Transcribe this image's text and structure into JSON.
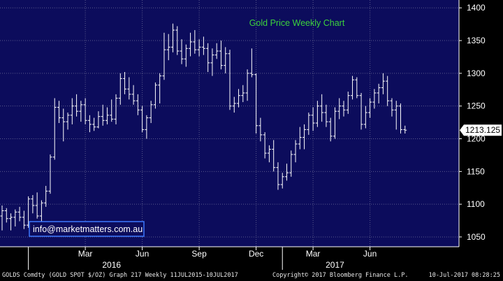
{
  "chart_data": {
    "type": "ohlc",
    "title": "Gold Price Weekly Chart",
    "watermark": "info@marketmatters.com.au",
    "last_price_label": "1213.125",
    "last_price": 1213.125,
    "ylim": [
      1035,
      1412
    ],
    "yticks": [
      1050,
      1100,
      1150,
      1200,
      1250,
      1300,
      1350,
      1400
    ],
    "month_ticks": [
      {
        "label": "Mar",
        "week": 19
      },
      {
        "label": "Jun",
        "week": 32
      },
      {
        "label": "Sep",
        "week": 45
      },
      {
        "label": "Dec",
        "week": 58
      },
      {
        "label": "Mar",
        "week": 71
      },
      {
        "label": "Jun",
        "week": 84
      }
    ],
    "year_labels": [
      {
        "label": "2016",
        "week": 25
      },
      {
        "label": "2017",
        "week": 76
      }
    ],
    "year_separators": [
      6,
      64
    ],
    "x_count": 104,
    "colors": {
      "background": "#0c0c5c",
      "bars": "#ffffff",
      "title": "#3cd23c",
      "grid": "#5a5a8c",
      "axis_text": "#ffffff",
      "watermark_border": "#3c78ff",
      "price_tag_bg": "#ffffff",
      "price_tag_text": "#000000"
    },
    "ohlc": [
      [
        1082,
        1098,
        1060,
        1090
      ],
      [
        1090,
        1094,
        1072,
        1078
      ],
      [
        1078,
        1086,
        1060,
        1080
      ],
      [
        1080,
        1092,
        1066,
        1088
      ],
      [
        1088,
        1096,
        1074,
        1080
      ],
      [
        1080,
        1090,
        1062,
        1068
      ],
      [
        1068,
        1112,
        1064,
        1108
      ],
      [
        1108,
        1114,
        1086,
        1098
      ],
      [
        1098,
        1118,
        1078,
        1082
      ],
      [
        1082,
        1106,
        1072,
        1102
      ],
      [
        1102,
        1128,
        1096,
        1120
      ],
      [
        1120,
        1176,
        1116,
        1172
      ],
      [
        1172,
        1262,
        1168,
        1248
      ],
      [
        1248,
        1258,
        1224,
        1232
      ],
      [
        1232,
        1246,
        1196,
        1226
      ],
      [
        1226,
        1240,
        1214,
        1236
      ],
      [
        1236,
        1262,
        1222,
        1250
      ],
      [
        1250,
        1268,
        1234,
        1242
      ],
      [
        1242,
        1258,
        1226,
        1252
      ],
      [
        1252,
        1262,
        1222,
        1228
      ],
      [
        1228,
        1236,
        1210,
        1222
      ],
      [
        1222,
        1232,
        1212,
        1218
      ],
      [
        1218,
        1242,
        1216,
        1234
      ],
      [
        1234,
        1252,
        1220,
        1228
      ],
      [
        1228,
        1248,
        1222,
        1236
      ],
      [
        1236,
        1260,
        1226,
        1230
      ],
      [
        1230,
        1268,
        1222,
        1262
      ],
      [
        1262,
        1300,
        1252,
        1292
      ],
      [
        1292,
        1302,
        1268,
        1276
      ],
      [
        1276,
        1294,
        1260,
        1268
      ],
      [
        1268,
        1282,
        1252,
        1258
      ],
      [
        1258,
        1268,
        1236,
        1244
      ],
      [
        1244,
        1250,
        1210,
        1214
      ],
      [
        1214,
        1236,
        1200,
        1232
      ],
      [
        1232,
        1258,
        1224,
        1252
      ],
      [
        1252,
        1286,
        1246,
        1282
      ],
      [
        1282,
        1300,
        1254,
        1296
      ],
      [
        1296,
        1362,
        1290,
        1336
      ],
      [
        1336,
        1360,
        1320,
        1340
      ],
      [
        1340,
        1376,
        1332,
        1366
      ],
      [
        1366,
        1372,
        1328,
        1334
      ],
      [
        1334,
        1352,
        1314,
        1322
      ],
      [
        1322,
        1344,
        1310,
        1338
      ],
      [
        1338,
        1362,
        1326,
        1348
      ],
      [
        1348,
        1366,
        1330,
        1336
      ],
      [
        1336,
        1352,
        1326,
        1340
      ],
      [
        1340,
        1356,
        1328,
        1338
      ],
      [
        1338,
        1346,
        1302,
        1316
      ],
      [
        1316,
        1338,
        1296,
        1328
      ],
      [
        1328,
        1346,
        1322,
        1334
      ],
      [
        1334,
        1350,
        1306,
        1312
      ],
      [
        1312,
        1340,
        1300,
        1330
      ],
      [
        1330,
        1336,
        1244,
        1250
      ],
      [
        1250,
        1264,
        1240,
        1254
      ],
      [
        1254,
        1276,
        1248,
        1266
      ],
      [
        1266,
        1282,
        1256,
        1270
      ],
      [
        1270,
        1306,
        1258,
        1300
      ],
      [
        1300,
        1338,
        1294,
        1298
      ],
      [
        1298,
        1300,
        1208,
        1220
      ],
      [
        1220,
        1232,
        1196,
        1206
      ],
      [
        1206,
        1210,
        1170,
        1178
      ],
      [
        1178,
        1190,
        1164,
        1184
      ],
      [
        1184,
        1198,
        1150,
        1156
      ],
      [
        1156,
        1164,
        1122,
        1130
      ],
      [
        1130,
        1148,
        1124,
        1142
      ],
      [
        1142,
        1162,
        1136,
        1148
      ],
      [
        1148,
        1182,
        1142,
        1176
      ],
      [
        1176,
        1198,
        1164,
        1192
      ],
      [
        1192,
        1218,
        1184,
        1202
      ],
      [
        1202,
        1222,
        1184,
        1214
      ],
      [
        1214,
        1240,
        1206,
        1236
      ],
      [
        1236,
        1248,
        1212,
        1224
      ],
      [
        1224,
        1258,
        1218,
        1250
      ],
      [
        1250,
        1268,
        1226,
        1240
      ],
      [
        1240,
        1252,
        1218,
        1226
      ],
      [
        1226,
        1232,
        1196,
        1204
      ],
      [
        1204,
        1248,
        1200,
        1242
      ],
      [
        1242,
        1262,
        1230,
        1250
      ],
      [
        1250,
        1258,
        1234,
        1244
      ],
      [
        1244,
        1272,
        1238,
        1266
      ],
      [
        1266,
        1296,
        1260,
        1290
      ],
      [
        1290,
        1294,
        1262,
        1266
      ],
      [
        1266,
        1270,
        1214,
        1222
      ],
      [
        1222,
        1250,
        1216,
        1240
      ],
      [
        1240,
        1262,
        1232,
        1256
      ],
      [
        1256,
        1276,
        1246,
        1270
      ],
      [
        1270,
        1284,
        1254,
        1278
      ],
      [
        1278,
        1300,
        1268,
        1288
      ],
      [
        1288,
        1296,
        1250,
        1258
      ],
      [
        1258,
        1262,
        1234,
        1244
      ],
      [
        1244,
        1258,
        1214,
        1250
      ],
      [
        1250,
        1254,
        1208,
        1214
      ],
      [
        1214,
        1220,
        1208,
        1213.125
      ]
    ]
  },
  "footer": {
    "left": "GOLDS Comdty (GOLD SPOT $/OZ) Graph 217  Weekly 11JUL2015-10JUL2017",
    "center": "Copyright© 2017 Bloomberg Finance L.P.",
    "right": "10-Jul-2017 08:28:25"
  }
}
